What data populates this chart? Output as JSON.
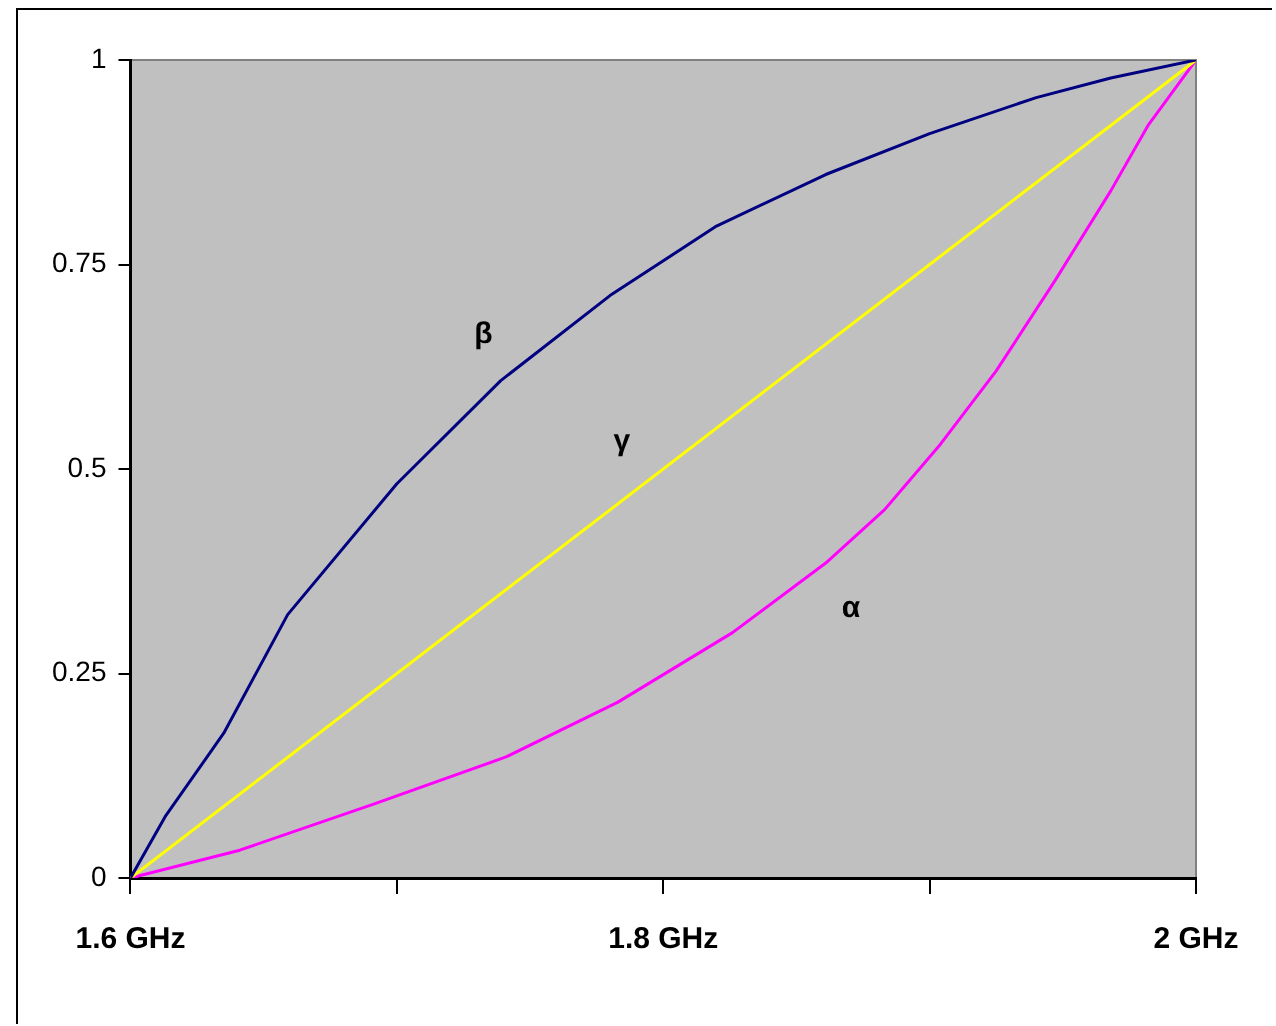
{
  "chart_data": {
    "type": "line",
    "xlim": [
      1.6,
      2
    ],
    "xticks": [
      {
        "value": 1.6,
        "label": "1.6 GHz"
      },
      {
        "value": 1.7,
        "label": null
      },
      {
        "value": 1.8,
        "label": "1.8 GHz"
      },
      {
        "value": 1.9,
        "label": null
      },
      {
        "value": 2,
        "label": "2 GHz"
      }
    ],
    "ylim": [
      0,
      1
    ],
    "yticks": [
      0,
      0.25,
      0.5,
      0.75,
      1
    ],
    "marker": "none",
    "legend": false,
    "grid": false,
    "series": [
      {
        "name": "β",
        "color": "#000080",
        "x": [
          1.6,
          1.613,
          1.635,
          1.659,
          1.7,
          1.739,
          1.78,
          1.82,
          1.861,
          1.9,
          1.94,
          1.968,
          2
        ],
        "values": [
          0,
          0.075,
          0.177,
          0.322,
          0.482,
          0.608,
          0.712,
          0.797,
          0.86,
          0.91,
          0.954,
          0.978,
          1
        ]
      },
      {
        "name": "γ",
        "color": "#ffff00",
        "x": [
          1.6,
          2
        ],
        "values": [
          0,
          1
        ]
      },
      {
        "name": "α",
        "color": "#ff00ff",
        "x": [
          1.6,
          1.641,
          1.691,
          1.741,
          1.783,
          1.826,
          1.861,
          1.883,
          1.904,
          1.925,
          1.947,
          1.968,
          1.982,
          2
        ],
        "values": [
          0,
          0.034,
          0.09,
          0.148,
          0.215,
          0.3,
          0.385,
          0.45,
          0.53,
          0.62,
          0.73,
          0.84,
          0.92,
          1
        ]
      }
    ]
  }
}
